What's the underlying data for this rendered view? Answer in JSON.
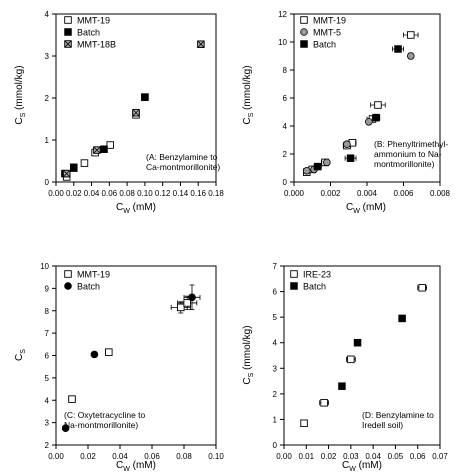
{
  "chart_data": [
    {
      "type": "scatter",
      "xlabel": "C",
      "xlabel_sub": "W",
      "xlabel_unit": "(mM)",
      "ylabel": "C",
      "ylabel_sub": "S",
      "ylabel_unit": "(mmol/kg)",
      "xlim": [
        0.0,
        0.18
      ],
      "ylim": [
        0,
        4
      ],
      "xticks": [
        "0.00",
        "0.02",
        "0.04",
        "0.06",
        "0.08",
        "0.10",
        "0.12",
        "0.14",
        "0.16",
        "0.18"
      ],
      "yticks": [
        "0",
        "1",
        "2",
        "3",
        "4"
      ],
      "legend_position": "top-left",
      "annotation": [
        "(A: Benzylamine to",
        "Ca-montmorillonite)"
      ],
      "series": [
        {
          "name": "MMT-19",
          "marker": "open-square",
          "points": [
            [
              0.012,
              0.12
            ],
            [
              0.02,
              0.33
            ],
            [
              0.032,
              0.45
            ],
            [
              0.044,
              0.7
            ],
            [
              0.061,
              0.88
            ],
            [
              0.09,
              1.6
            ],
            [
              0.1,
              2.02
            ]
          ],
          "xerr": [
            0.001,
            0.002,
            0.002,
            0.002,
            0.002,
            0.002,
            0.002
          ],
          "yerr": [
            0.03,
            0.05,
            0.04,
            0.06,
            0.05,
            0.08,
            0.04
          ]
        },
        {
          "name": "Batch",
          "marker": "filled-square",
          "points": [
            [
              0.01,
              0.2
            ],
            [
              0.02,
              0.35
            ],
            [
              0.054,
              0.78
            ],
            [
              0.1,
              2.02
            ]
          ],
          "xerr": [
            0,
            0,
            0,
            0
          ],
          "yerr": [
            0.03,
            0.05,
            0.06,
            0.05
          ]
        },
        {
          "name": "MMT-18B",
          "marker": "crossed-square",
          "points": [
            [
              0.012,
              0.2
            ],
            [
              0.046,
              0.76
            ],
            [
              0.09,
              1.65
            ],
            [
              0.163,
              3.28
            ]
          ],
          "xerr": [
            0.002,
            0.002,
            0.002,
            0.002
          ],
          "yerr": [
            0.04,
            0.05,
            0.08,
            0.08
          ]
        }
      ]
    },
    {
      "type": "scatter",
      "xlabel": "C",
      "xlabel_sub": "W",
      "xlabel_unit": "(mM)",
      "ylabel": "C",
      "ylabel_sub": "S",
      "ylabel_unit": "(mmol/kg)",
      "xlim": [
        0.0,
        0.008
      ],
      "ylim": [
        0,
        12
      ],
      "xticks": [
        "0.000",
        "0.002",
        "0.004",
        "0.006",
        "0.008"
      ],
      "yticks": [
        "0",
        "2",
        "4",
        "6",
        "8",
        "10",
        "12"
      ],
      "legend_position": "top-left",
      "annotation": [
        "(B: Phenyltrimethyl-",
        "ammonium to Na-",
        "montmorillonite)"
      ],
      "series": [
        {
          "name": "MMT-19",
          "marker": "open-square",
          "points": [
            [
              0.0007,
              0.7
            ],
            [
              0.001,
              0.9
            ],
            [
              0.0017,
              1.4
            ],
            [
              0.0029,
              2.6
            ],
            [
              0.0032,
              2.8
            ],
            [
              0.0043,
              4.5
            ],
            [
              0.0046,
              5.5
            ],
            [
              0.0064,
              10.5
            ]
          ],
          "xerr": [
            0.0001,
            0.0001,
            0.0002,
            0.0002,
            0.0002,
            0.0003,
            0.0004,
            0.0004
          ],
          "yerr": [
            0.1,
            0.1,
            0.1,
            0.15,
            0.15,
            0.15,
            0.2,
            0.2
          ]
        },
        {
          "name": "MMT-5",
          "marker": "grey-circle",
          "points": [
            [
              0.0007,
              0.8
            ],
            [
              0.0011,
              0.9
            ],
            [
              0.0018,
              1.4
            ],
            [
              0.0029,
              2.7
            ],
            [
              0.0041,
              4.3
            ],
            [
              0.0064,
              9.0
            ]
          ],
          "xerr": [
            0,
            0,
            0,
            0,
            0,
            0
          ],
          "yerr": [
            0.1,
            0.1,
            0.1,
            0.1,
            0.1,
            0.2
          ]
        },
        {
          "name": "Batch",
          "marker": "filled-square",
          "points": [
            [
              0.0013,
              1.1
            ],
            [
              0.0031,
              1.7
            ],
            [
              0.0045,
              4.6
            ],
            [
              0.0057,
              9.5
            ]
          ],
          "xerr": [
            0.0002,
            0.0003,
            0.0002,
            0.0003
          ],
          "yerr": [
            0.1,
            0.1,
            0.15,
            0.2
          ]
        }
      ]
    },
    {
      "type": "scatter",
      "xlabel": "C",
      "xlabel_sub": "W",
      "xlabel_unit": "(mM)",
      "ylabel": "C",
      "ylabel_sub": "S",
      "ylabel_unit": "",
      "xlim": [
        0.0,
        0.1
      ],
      "ylim": [
        2,
        10
      ],
      "xticks": [
        "0.00",
        "0.02",
        "0.04",
        "0.06",
        "0.08",
        "0.10"
      ],
      "yticks": [
        "2",
        "3",
        "4",
        "5",
        "6",
        "7",
        "8",
        "9",
        "10"
      ],
      "legend_position": "top-left",
      "annotation": [
        "(C: Oxytetracycline to",
        "Na-montmorillonite)"
      ],
      "series": [
        {
          "name": "MMT-19",
          "marker": "open-square",
          "points": [
            [
              0.01,
              4.05
            ],
            [
              0.033,
              6.15
            ],
            [
              0.078,
              8.15
            ],
            [
              0.082,
              8.35
            ]
          ],
          "xerr": [
            0.002,
            0.002,
            0.006,
            0.006
          ],
          "yerr": [
            0.1,
            0.1,
            0.25,
            0.3
          ]
        },
        {
          "name": "Batch",
          "marker": "filled-circle",
          "points": [
            [
              0.006,
              2.75
            ],
            [
              0.024,
              6.05
            ],
            [
              0.085,
              8.6
            ]
          ],
          "xerr": [
            0,
            0,
            0.005
          ],
          "yerr": [
            0,
            0,
            0.55
          ]
        }
      ]
    },
    {
      "type": "scatter",
      "xlabel": "C",
      "xlabel_sub": "W",
      "xlabel_unit": "(mM)",
      "ylabel": "C",
      "ylabel_sub": "S",
      "ylabel_unit": "(mmol/kg)",
      "xlim": [
        0.0,
        0.07
      ],
      "ylim": [
        0,
        7
      ],
      "xticks": [
        "0.00",
        "0.01",
        "0.02",
        "0.03",
        "0.04",
        "0.05",
        "0.06",
        "0.07"
      ],
      "yticks": [
        "0",
        "1",
        "2",
        "3",
        "4",
        "5",
        "6",
        "7"
      ],
      "legend_position": "top-left",
      "annotation": [
        "(D: Benzylamine to",
        "Iredell soil)"
      ],
      "series": [
        {
          "name": "IRE-23",
          "marker": "open-square",
          "points": [
            [
              0.009,
              0.85
            ],
            [
              0.018,
              1.65
            ],
            [
              0.03,
              3.35
            ],
            [
              0.062,
              6.15
            ]
          ],
          "xerr": [
            0.001,
            0.002,
            0.002,
            0.002
          ],
          "yerr": [
            0.05,
            0.1,
            0.1,
            0.1
          ]
        },
        {
          "name": "Batch",
          "marker": "filled-square",
          "points": [
            [
              0.026,
              2.3
            ],
            [
              0.033,
              4.0
            ],
            [
              0.053,
              4.95
            ]
          ],
          "xerr": [
            0,
            0,
            0
          ],
          "yerr": [
            0,
            0,
            0
          ]
        }
      ]
    }
  ]
}
